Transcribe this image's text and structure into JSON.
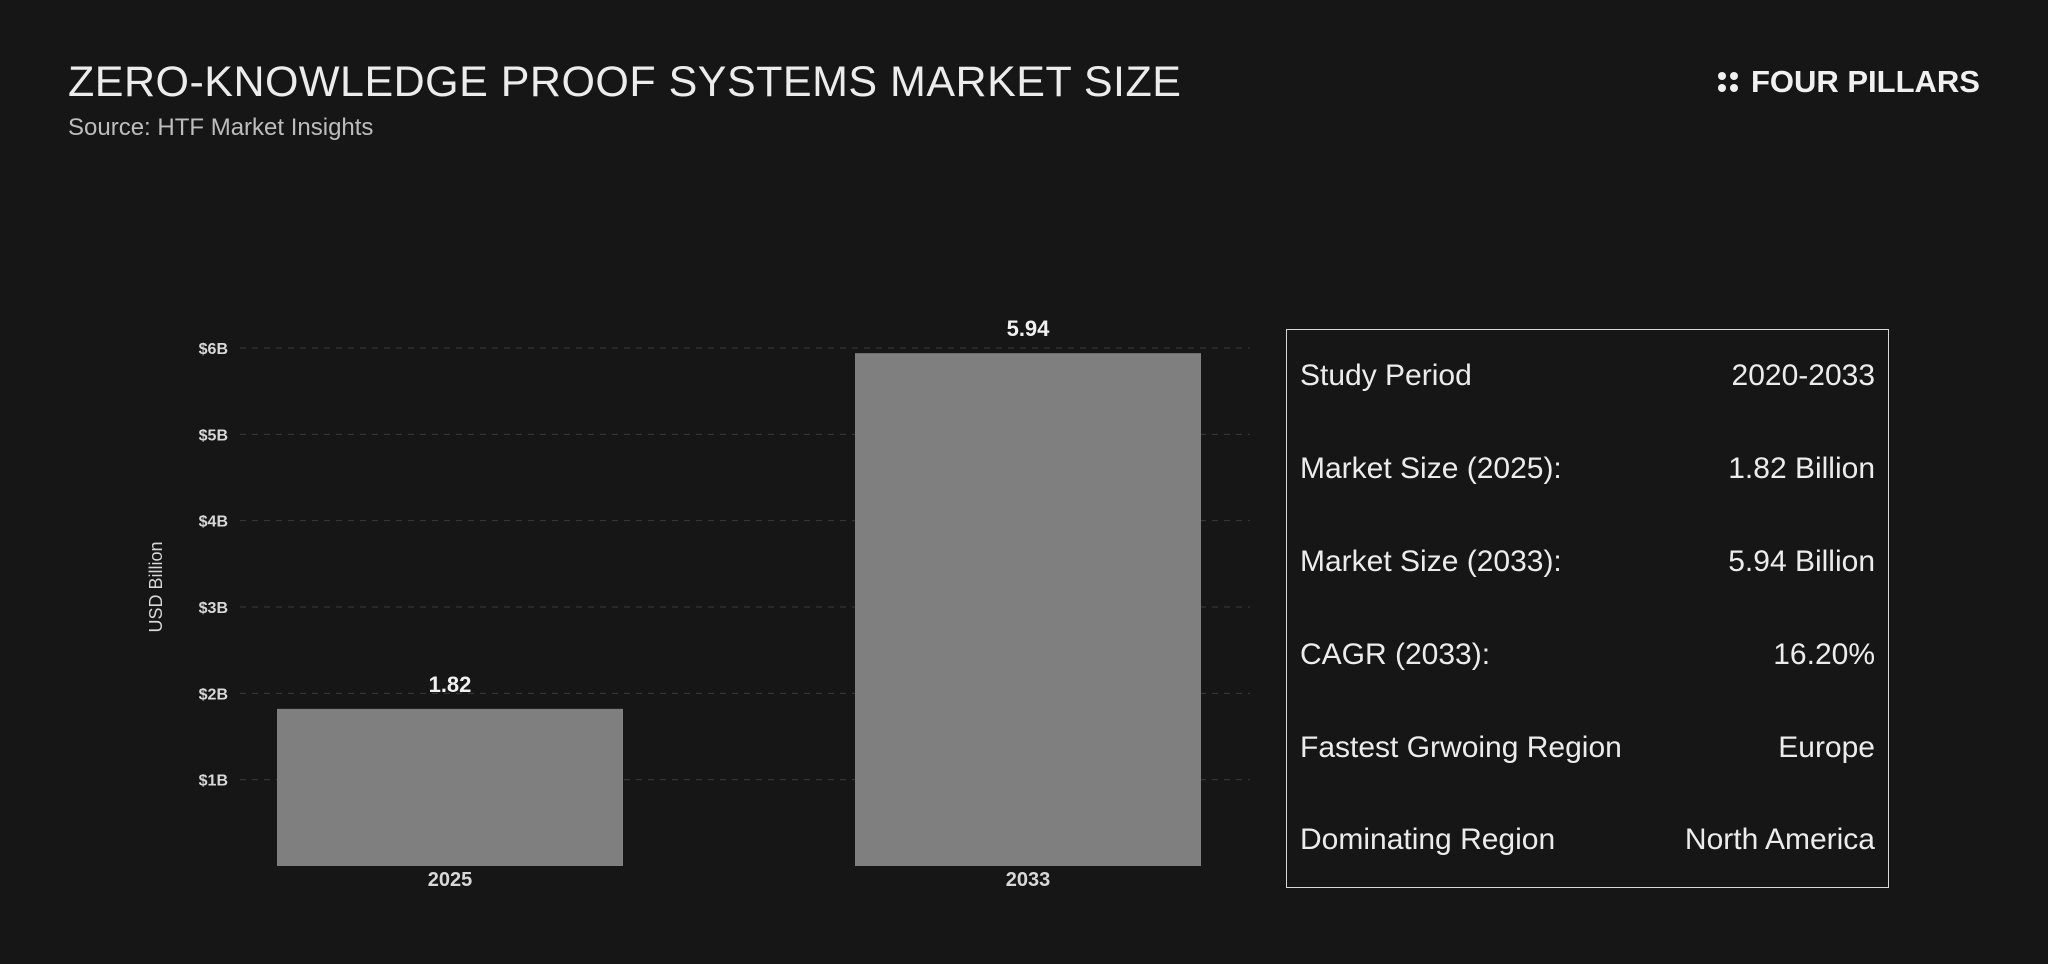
{
  "header": {
    "title": "ZERO-KNOWLEDGE PROOF SYSTEMS MARKET SIZE",
    "subtitle": "Source: HTF Market Insights",
    "brand": "FOUR PILLARS",
    "brand_icon": "four-dots-icon"
  },
  "chart_data": {
    "type": "bar",
    "categories": [
      "2025",
      "2033"
    ],
    "values": [
      1.82,
      5.94
    ],
    "value_labels": [
      "1.82",
      "5.94"
    ],
    "ylabel": "USD Billion",
    "yticks": [
      1,
      2,
      3,
      4,
      5,
      6
    ],
    "ytick_labels": [
      "$1B",
      "$2B",
      "$3B",
      "$4B",
      "$5B",
      "$6B"
    ],
    "ylim": [
      0,
      6
    ],
    "grid": true,
    "bar_color": "#7f7f7f"
  },
  "stats": [
    {
      "label": "Study Period",
      "value": "2020-2033"
    },
    {
      "label": "Market Size (2025):",
      "value": "1.82 Billion"
    },
    {
      "label": "Market Size (2033):",
      "value": "5.94 Billion"
    },
    {
      "label": "CAGR (2033):",
      "value": "16.20%"
    },
    {
      "label": "Fastest Grwoing Region",
      "value": "Europe"
    },
    {
      "label": "Dominating Region",
      "value": "North America"
    }
  ],
  "colors": {
    "background": "#161616",
    "text": "#ececec",
    "gridline": "#3a3a3a"
  }
}
